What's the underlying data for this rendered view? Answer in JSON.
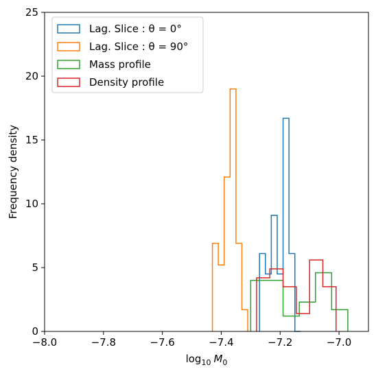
{
  "chart_data": {
    "type": "histogram-step",
    "xlabel": "log",
    "xlabel_sub": "10",
    "xlabel_var": "M",
    "xlabel_var_sub": "0",
    "ylabel": "Frequency density",
    "xlim": [
      -8.0,
      -6.9
    ],
    "ylim": [
      0,
      25
    ],
    "xticks": [
      -8.0,
      -7.8,
      -7.6,
      -7.4,
      -7.2,
      -7.0
    ],
    "xtick_labels": [
      "−8.0",
      "−7.8",
      "−7.6",
      "−7.4",
      "−7.2",
      "−7.0"
    ],
    "yticks": [
      0,
      5,
      10,
      15,
      20,
      25
    ],
    "ytick_labels": [
      "0",
      "5",
      "10",
      "15",
      "20",
      "25"
    ],
    "legend_position": "upper-left",
    "series": [
      {
        "name": "Lag. Slice : θ = 0°",
        "color": "#1f77b4",
        "edges": [
          -7.27,
          -7.25,
          -7.23,
          -7.21,
          -7.19,
          -7.17,
          -7.15,
          -7.13
        ],
        "values": [
          6.1,
          4.5,
          9.1,
          4.5,
          16.7,
          6.1,
          0
        ]
      },
      {
        "name": "Lag. Slice : θ = 90°",
        "color": "#ff7f0e",
        "edges": [
          -7.43,
          -7.41,
          -7.39,
          -7.37,
          -7.35,
          -7.33,
          -7.31
        ],
        "values": [
          6.9,
          5.2,
          12.1,
          19.0,
          6.9,
          1.7
        ]
      },
      {
        "name": "Mass profile",
        "color": "#2ca02c",
        "edges": [
          -7.3,
          -7.245,
          -7.19,
          -7.135,
          -7.08,
          -7.025,
          -6.97
        ],
        "values": [
          4.0,
          4.0,
          1.2,
          2.3,
          4.6,
          1.7
        ]
      },
      {
        "name": "Density profile",
        "color": "#d62728",
        "edges": [
          -7.28,
          -7.235,
          -7.19,
          -7.145,
          -7.1,
          -7.055,
          -7.01
        ],
        "values": [
          4.2,
          4.9,
          3.5,
          1.4,
          5.6,
          3.5
        ]
      }
    ]
  }
}
